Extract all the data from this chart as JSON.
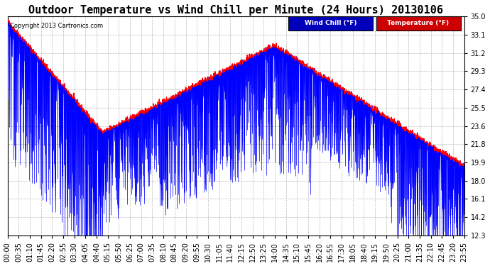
{
  "title": "Outdoor Temperature vs Wind Chill per Minute (24 Hours) 20130106",
  "copyright": "Copyright 2013 Cartronics.com",
  "yticks": [
    12.3,
    14.2,
    16.1,
    18.0,
    19.9,
    21.8,
    23.6,
    25.5,
    27.4,
    29.3,
    31.2,
    33.1,
    35.0
  ],
  "ymin": 12.3,
  "ymax": 35.0,
  "bg_color": "#ffffff",
  "grid_color": "#bbbbbb",
  "wind_chill_color": "#0000ff",
  "temp_color": "#ff0000",
  "title_fontsize": 11,
  "tick_fontsize": 7,
  "xtick_labels": [
    "00:00",
    "00:35",
    "01:10",
    "01:45",
    "02:20",
    "02:55",
    "03:30",
    "04:05",
    "04:40",
    "05:15",
    "05:50",
    "06:25",
    "07:00",
    "07:35",
    "08:10",
    "08:45",
    "09:20",
    "09:55",
    "10:30",
    "11:05",
    "11:40",
    "12:15",
    "12:50",
    "13:25",
    "14:00",
    "14:35",
    "15:10",
    "15:45",
    "16:20",
    "16:55",
    "17:30",
    "18:05",
    "18:40",
    "19:15",
    "19:50",
    "20:25",
    "21:00",
    "21:35",
    "22:10",
    "22:45",
    "23:20",
    "23:55"
  ],
  "legend_labels": [
    "Wind Chill (°F)",
    "Temperature (°F)"
  ],
  "legend_colors": [
    "#0000bb",
    "#cc0000"
  ]
}
